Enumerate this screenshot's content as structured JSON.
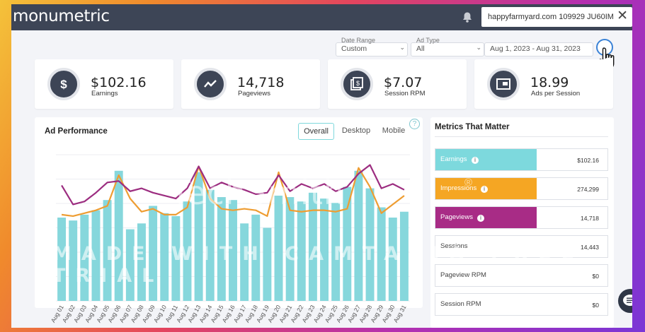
{
  "brand": {
    "logo": "monumetric"
  },
  "header": {
    "site": "happyfarmyard.com 109929 JU60IM",
    "close_icon": "close-icon",
    "bell_icon": "bell-icon"
  },
  "filters": {
    "date_range_label": "Date Range",
    "date_range_value": "Custom",
    "ad_type_label": "Ad Type",
    "ad_type_value": "All",
    "date_value": "Aug 1, 2023 - Aug 31, 2023"
  },
  "stats": [
    {
      "value": "$102.16",
      "label": "Earnings",
      "icon": "dollar-icon"
    },
    {
      "value": "14,718",
      "label": "Pageviews",
      "icon": "trend-icon"
    },
    {
      "value": "$7.07",
      "label": "Session RPM",
      "icon": "session-rpm-icon"
    },
    {
      "value": "18.99",
      "label": "Ads per Session",
      "icon": "ad-icon"
    }
  ],
  "ad_performance": {
    "title": "Ad Performance",
    "tabs": [
      "Overall",
      "Desktop",
      "Mobile"
    ],
    "help": "?"
  },
  "metrics": {
    "title": "Metrics That Matter",
    "rows": [
      {
        "name": "Earnings",
        "value": "$102.16",
        "color": "#7dd9dd",
        "fill": 0.59,
        "info": true
      },
      {
        "name": "Impressions",
        "value": "274,299",
        "color": "#f5a623",
        "fill": 0.59,
        "info": true
      },
      {
        "name": "Pageviews",
        "value": "14,718",
        "color": "#a82c86",
        "fill": 0.59,
        "info": true
      },
      {
        "name": "Sessions",
        "value": "14,443",
        "color": "#ffffff",
        "fill": 0,
        "info": false
      },
      {
        "name": "Pageview RPM",
        "value": "$0",
        "color": "#ffffff",
        "fill": 0,
        "info": false
      },
      {
        "name": "Session RPM",
        "value": "$0",
        "color": "#ffffff",
        "fill": 0,
        "info": false
      }
    ]
  },
  "watermark": {
    "line1": "TechSmith",
    "line2": "MADE WITH CAMTASIA FREE TRIAL",
    "reg": "®"
  },
  "chart_data": {
    "type": "bar",
    "categories": [
      "Aug 01",
      "Aug 02",
      "Aug 03",
      "Aug 04",
      "Aug 05",
      "Aug 06",
      "Aug 07",
      "Aug 08",
      "Aug 09",
      "Aug 10",
      "Aug 11",
      "Aug 12",
      "Aug 13",
      "Aug 14",
      "Aug 15",
      "Aug 16",
      "Aug 17",
      "Aug 18",
      "Aug 19",
      "Aug 20",
      "Aug 21",
      "Aug 22",
      "Aug 23",
      "Aug 24",
      "Aug 25",
      "Aug 26",
      "Aug 27",
      "Aug 28",
      "Aug 29",
      "Aug 30",
      "Aug 31"
    ],
    "series": [
      {
        "name": "Earnings",
        "kind": "bar",
        "color": "#86d7dc",
        "values": [
          0.57,
          0.55,
          0.59,
          0.62,
          0.69,
          0.89,
          0.49,
          0.53,
          0.65,
          0.6,
          0.58,
          0.68,
          0.88,
          0.76,
          0.71,
          0.69,
          0.53,
          0.59,
          0.5,
          0.72,
          0.71,
          0.68,
          0.74,
          0.7,
          0.67,
          0.78,
          0.89,
          0.77,
          0.64,
          0.57,
          0.61
        ]
      },
      {
        "name": "Impressions",
        "kind": "line",
        "color": "#ee9d32",
        "values": [
          0.59,
          0.58,
          0.6,
          0.62,
          0.65,
          0.86,
          0.7,
          0.61,
          0.63,
          0.59,
          0.59,
          0.64,
          0.92,
          0.7,
          0.63,
          0.62,
          0.63,
          0.62,
          0.58,
          0.88,
          0.62,
          0.61,
          0.62,
          0.62,
          0.61,
          0.63,
          0.91,
          0.78,
          0.6,
          0.66,
          0.72
        ]
      },
      {
        "name": "Pageviews",
        "kind": "line",
        "color": "#9c2d80",
        "values": [
          0.79,
          0.66,
          0.68,
          0.74,
          0.81,
          0.82,
          0.75,
          0.77,
          0.74,
          0.72,
          0.7,
          0.77,
          0.92,
          0.77,
          0.81,
          0.78,
          0.76,
          0.73,
          0.74,
          0.86,
          0.75,
          0.8,
          0.77,
          0.8,
          0.75,
          0.78,
          0.87,
          0.93,
          0.77,
          0.8,
          0.76
        ]
      }
    ],
    "ylim": [
      0,
      1
    ]
  }
}
